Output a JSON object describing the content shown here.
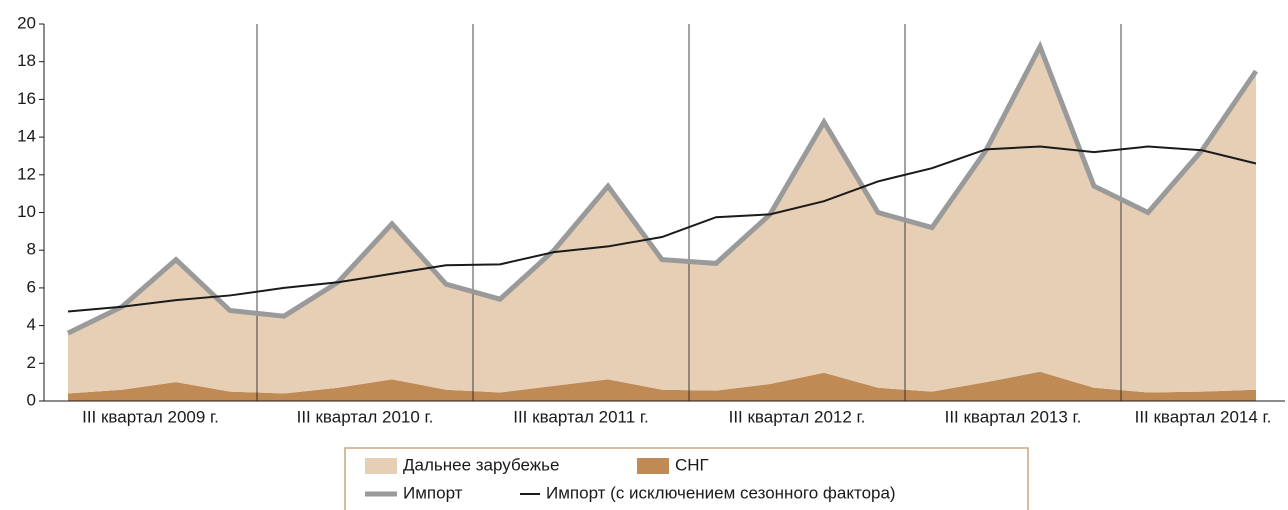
{
  "chart_data": {
    "type": "area",
    "categories": [
      null,
      "III квартал 2009 г.",
      null,
      null,
      null,
      "III квартал 2010 г.",
      null,
      null,
      null,
      "III квартал 2011 г.",
      null,
      null,
      null,
      "III квартал 2012 г.",
      null,
      null,
      null,
      "III квартал 2013 г.",
      null,
      null,
      null,
      "III квартал 2014 г.",
      null
    ],
    "series": [
      {
        "name": "Дальнее зарубежье",
        "type": "area",
        "color": "#e6cfb5",
        "values": [
          3.2,
          4.4,
          6.5,
          4.3,
          4.1,
          5.6,
          8.25,
          5.6,
          4.95,
          7.2,
          10.25,
          6.9,
          6.75,
          9.0,
          13.3,
          9.3,
          8.7,
          12.3,
          17.25,
          10.7,
          9.55,
          12.8,
          16.9
        ]
      },
      {
        "name": "СНГ",
        "type": "area",
        "color": "#c08a55",
        "values": [
          0.4,
          0.6,
          1.0,
          0.5,
          0.4,
          0.7,
          1.15,
          0.6,
          0.45,
          0.8,
          1.15,
          0.6,
          0.55,
          0.9,
          1.5,
          0.7,
          0.5,
          1.0,
          1.55,
          0.7,
          0.45,
          0.5,
          0.6
        ]
      },
      {
        "name": "Импорт",
        "type": "line",
        "color": "#9a9a9a",
        "values": [
          3.6,
          5.0,
          7.5,
          4.8,
          4.5,
          6.3,
          9.4,
          6.2,
          5.4,
          8.0,
          11.4,
          7.5,
          7.3,
          9.9,
          14.8,
          10.0,
          9.2,
          13.3,
          18.8,
          11.4,
          10.0,
          13.3,
          17.5
        ]
      },
      {
        "name": "Импорт (с исключением сезонного фактора)",
        "type": "line",
        "color": "#1a1a1a",
        "values": [
          4.75,
          5.0,
          5.35,
          5.6,
          6.0,
          6.3,
          6.75,
          7.2,
          7.25,
          7.9,
          8.2,
          8.7,
          9.75,
          9.9,
          10.6,
          11.65,
          12.35,
          13.35,
          13.5,
          13.2,
          13.5,
          13.3,
          12.6
        ]
      }
    ],
    "ylim": [
      0,
      20
    ],
    "yticks": [
      0,
      2,
      4,
      6,
      8,
      10,
      12,
      14,
      16,
      18,
      20
    ],
    "xgrid": true
  }
}
